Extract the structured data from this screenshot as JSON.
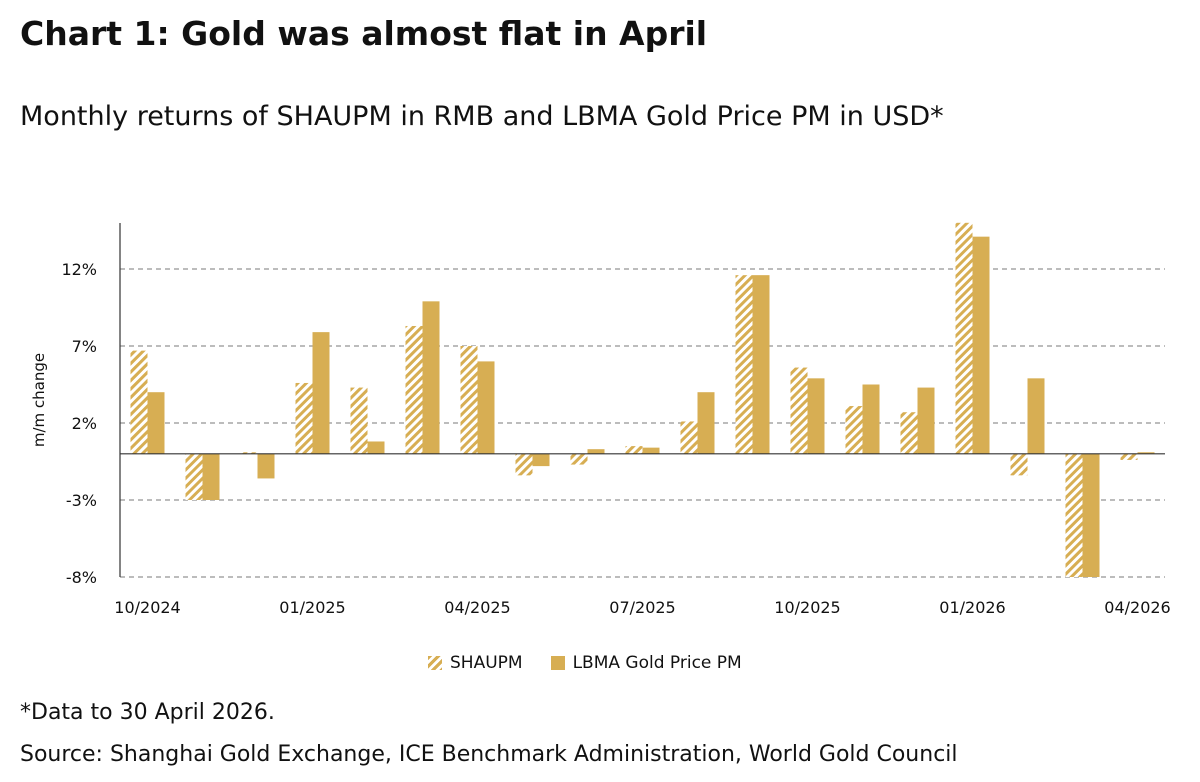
{
  "title": "Chart 1: Gold was almost flat in April",
  "subtitle": "Monthly returns of SHAUPM in RMB and LBMA Gold Price PM in USD*",
  "footnote": "*Data to 30 April 2026.",
  "source": "Source: Shanghai Gold Exchange, ICE Benchmark Administration, World Gold Council",
  "colors": {
    "gold": "#D7AE53",
    "grid": "#A6A6A6",
    "axis": "#333333"
  },
  "chart_data": {
    "type": "bar",
    "ylabel": "m/m change",
    "xlabel": "",
    "ylim": [
      -8,
      15
    ],
    "yticks": [
      12,
      7,
      2,
      -3,
      -8
    ],
    "ytick_labels": [
      "12%",
      "7%",
      "2%",
      "-3%",
      "-8%"
    ],
    "grid": true,
    "legend_position": "bottom",
    "x_tick_labels": [
      "10/2024",
      "01/2025",
      "04/2025",
      "07/2025",
      "10/2025",
      "01/2026",
      "04/2026"
    ],
    "x_tick_label_indices": [
      0,
      3,
      6,
      9,
      12,
      15,
      18
    ],
    "categories": [
      "10/2024",
      "11/2024",
      "12/2024",
      "01/2025",
      "02/2025",
      "03/2025",
      "04/2025",
      "05/2025",
      "06/2025",
      "07/2025",
      "08/2025",
      "09/2025",
      "10/2025",
      "11/2025",
      "12/2025",
      "01/2026",
      "02/2026",
      "03/2026",
      "04/2026"
    ],
    "series": [
      {
        "name": "SHAUPM",
        "pattern": "hatched",
        "values": [
          6.7,
          -3.0,
          0.1,
          4.6,
          4.3,
          8.3,
          7.0,
          -1.4,
          -0.7,
          0.5,
          2.1,
          11.6,
          5.6,
          3.1,
          2.7,
          15.1,
          -1.4,
          -8.2,
          -0.4
        ]
      },
      {
        "name": "LBMA Gold Price PM",
        "pattern": "solid",
        "values": [
          4.0,
          -3.0,
          -1.6,
          7.9,
          0.8,
          9.9,
          6.0,
          -0.8,
          0.3,
          0.4,
          4.0,
          11.6,
          4.9,
          4.5,
          4.3,
          14.1,
          4.9,
          -8.2,
          0.1
        ]
      }
    ]
  }
}
